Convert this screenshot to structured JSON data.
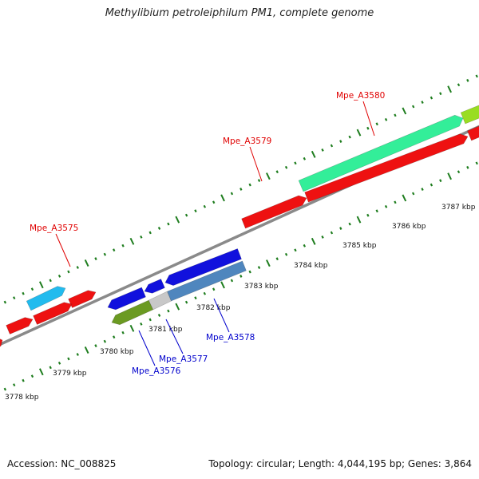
{
  "title": "Methylibium petroleiphilum PM1, complete genome",
  "footer": {
    "accession": "Accession: NC_008825",
    "topology": "Topology: circular; Length: 4,044,195 bp; Genes: 3,864"
  },
  "scale": {
    "unit": "kbp",
    "labels": [
      "3778 kbp",
      "3779 kbp",
      "3780 kbp",
      "3781 kbp",
      "3782 kbp",
      "3783 kbp",
      "3784 kbp",
      "3785 kbp",
      "3786 kbp",
      "3787 kbp"
    ]
  },
  "colors": {
    "background": "#ffffff",
    "backbone": "#8a8a8a",
    "tick": "#1e7d1e",
    "forward_label": "#e00000",
    "reverse_label": "#0000cc",
    "red_gene": "#ee1111",
    "cyan_gene": "#22bbee",
    "aqua_gene": "#33ee99",
    "lime_gene": "#99dd22",
    "blue_gene": "#1111dd",
    "steel_gene": "#4f86be",
    "olive_gene": "#6b9a22",
    "grey_gene": "#c8c8c8"
  },
  "gene_labels": [
    {
      "id": "Mpe_A3575",
      "strand": "forward"
    },
    {
      "id": "Mpe_A3579",
      "strand": "forward"
    },
    {
      "id": "Mpe_A3580",
      "strand": "forward"
    },
    {
      "id": "Mpe_A3576",
      "strand": "reverse"
    },
    {
      "id": "Mpe_A3577",
      "strand": "reverse"
    },
    {
      "id": "Mpe_A3578",
      "strand": "reverse"
    }
  ]
}
